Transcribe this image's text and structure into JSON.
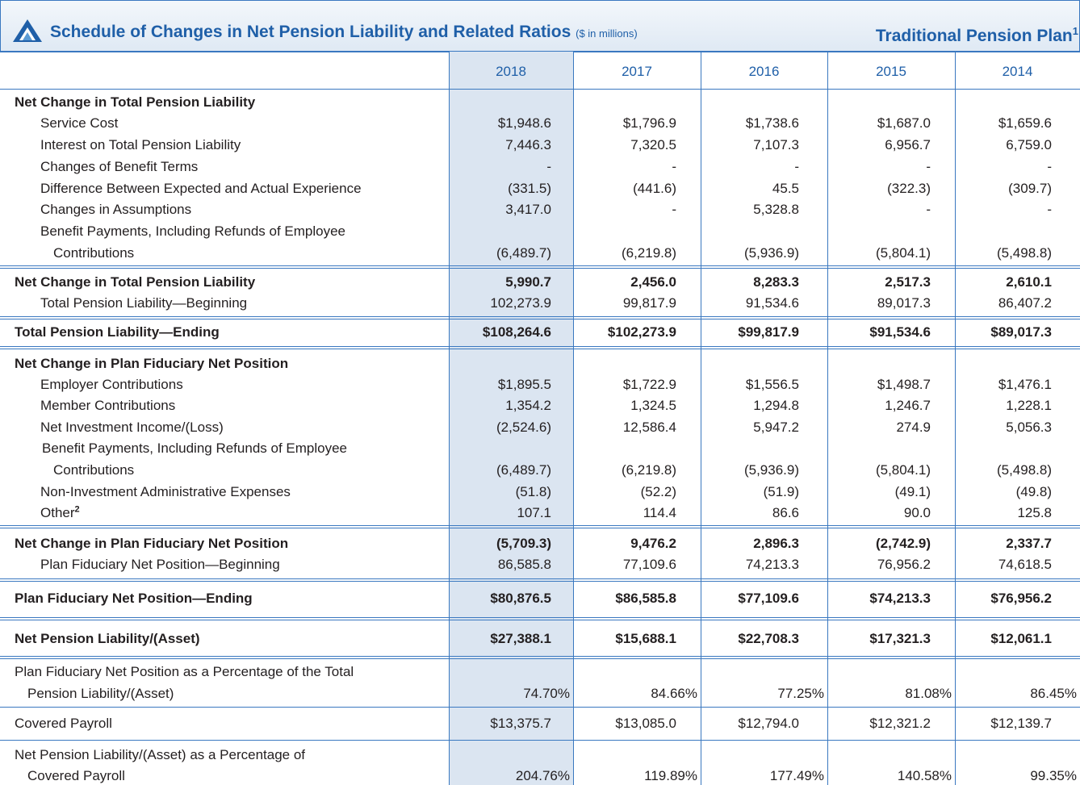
{
  "header": {
    "title": "Schedule of Changes in Net Pension Liability and Related Ratios",
    "units": "($ in millions)",
    "plan": "Traditional Pension Plan",
    "plan_footnote": "1"
  },
  "table": {
    "columns": [
      "2018",
      "2017",
      "2016",
      "2015",
      "2014"
    ],
    "rows": [
      {
        "label": [
          "Net Change in Total Pension Liability"
        ]
      },
      {
        "label": [
          "Service Cost"
        ],
        "values": [
          "$1,948.6",
          "$1,796.9",
          "$1,738.6",
          "$1,687.0",
          "$1,659.6"
        ]
      },
      {
        "label": [
          "Interest on Total Pension Liability"
        ],
        "values": [
          "7,446.3",
          "7,320.5",
          "7,107.3",
          "6,956.7",
          "6,759.0"
        ]
      },
      {
        "label": [
          "Changes of Benefit Terms"
        ],
        "values": [
          "-",
          "-",
          "-",
          "-",
          "-"
        ]
      },
      {
        "label": [
          "Difference Between Expected and Actual Experience"
        ],
        "values": [
          "(331.5)",
          "(441.6)",
          "45.5",
          "(322.3)",
          "(309.7)"
        ]
      },
      {
        "label": [
          "Changes in Assumptions"
        ],
        "values": [
          "3,417.0",
          "-",
          "5,328.8",
          "-",
          "-"
        ]
      },
      {
        "label": [
          "Benefit Payments, Including Refunds of Employee",
          "Contributions"
        ],
        "values": [
          "(6,489.7)",
          "(6,219.8)",
          "(5,936.9)",
          "(5,804.1)",
          "(5,498.8)"
        ]
      },
      {
        "label": [
          "Net Change in Total Pension Liability"
        ],
        "values": [
          "5,990.7",
          "2,456.0",
          "8,283.3",
          "2,517.3",
          "2,610.1"
        ]
      },
      {
        "label": [
          "Total Pension Liability—Beginning"
        ],
        "values": [
          "102,273.9",
          "99,817.9",
          "91,534.6",
          "89,017.3",
          "86,407.2"
        ]
      },
      {
        "label": [
          "Total Pension Liability—Ending"
        ],
        "values": [
          "$108,264.6",
          "$102,273.9",
          "$99,817.9",
          "$91,534.6",
          "$89,017.3"
        ]
      },
      {
        "label": [
          "Net Change in Plan Fiduciary Net Position"
        ]
      },
      {
        "label": [
          "Employer Contributions"
        ],
        "values": [
          "$1,895.5",
          "$1,722.9",
          "$1,556.5",
          "$1,498.7",
          "$1,476.1"
        ]
      },
      {
        "label": [
          "Member Contributions"
        ],
        "values": [
          "1,354.2",
          "1,324.5",
          "1,294.8",
          "1,246.7",
          "1,228.1"
        ]
      },
      {
        "label": [
          "Net Investment Income/(Loss)"
        ],
        "values": [
          "(2,524.6)",
          "12,586.4",
          "5,947.2",
          "274.9",
          "5,056.3"
        ]
      },
      {
        "label": [
          "Benefit Payments, Including Refunds of Employee",
          "Contributions"
        ],
        "values": [
          "(6,489.7)",
          "(6,219.8)",
          "(5,936.9)",
          "(5,804.1)",
          "(5,498.8)"
        ]
      },
      {
        "label": [
          "Non-Investment Administrative Expenses"
        ],
        "values": [
          "(51.8)",
          "(52.2)",
          "(51.9)",
          "(49.1)",
          "(49.8)"
        ]
      },
      {
        "label": [
          "Other"
        ],
        "footnote": "2",
        "values": [
          "107.1",
          "114.4",
          "86.6",
          "90.0",
          "125.8"
        ]
      },
      {
        "label": [
          "Net Change in Plan Fiduciary Net Position"
        ],
        "values": [
          "(5,709.3)",
          "9,476.2",
          "2,896.3",
          "(2,742.9)",
          "2,337.7"
        ]
      },
      {
        "label": [
          "Plan Fiduciary Net Position—Beginning"
        ],
        "values": [
          "86,585.8",
          "77,109.6",
          "74,213.3",
          "76,956.2",
          "74,618.5"
        ]
      },
      {
        "label": [
          "Plan Fiduciary Net Position—Ending"
        ],
        "values": [
          "$80,876.5",
          "$86,585.8",
          "$77,109.6",
          "$74,213.3",
          "$76,956.2"
        ]
      },
      {
        "label": [
          "Net Pension Liability/(Asset)"
        ],
        "values": [
          "$27,388.1",
          "$15,688.1",
          "$22,708.3",
          "$17,321.3",
          "$12,061.1"
        ]
      },
      {
        "label": [
          "Plan Fiduciary Net Position as a Percentage of the Total",
          "Pension Liability/(Asset)"
        ],
        "values": [
          "74.70%",
          "84.66%",
          "77.25%",
          "81.08%",
          "86.45%"
        ]
      },
      {
        "label": [
          "Covered Payroll"
        ],
        "values": [
          "$13,375.7",
          "$13,085.0",
          "$12,794.0",
          "$12,321.2",
          "$12,139.7"
        ]
      },
      {
        "label": [
          "Net Pension Liability/(Asset) as a Percentage of",
          "Covered Payroll"
        ],
        "values": [
          "204.76%",
          "119.89%",
          "177.49%",
          "140.58%",
          "99.35%"
        ]
      }
    ]
  }
}
